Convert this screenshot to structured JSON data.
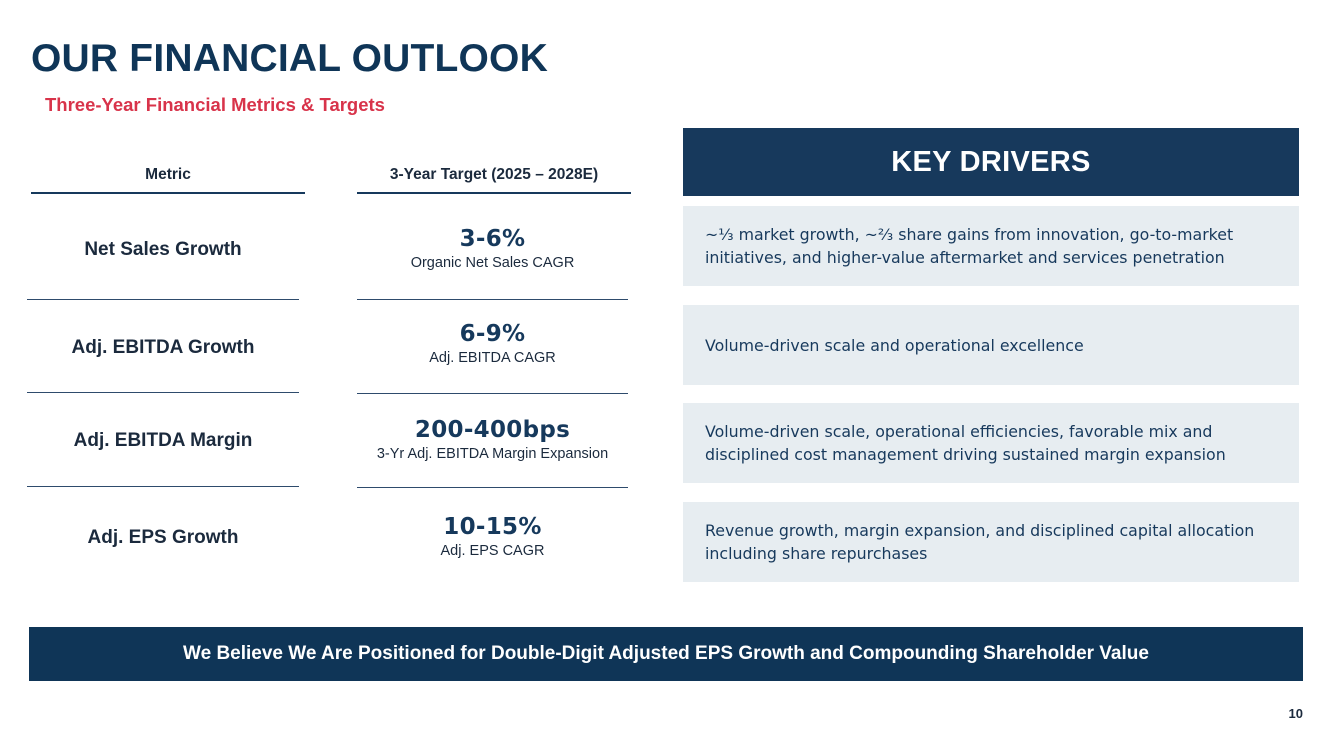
{
  "title": "OUR FINANCIAL OUTLOOK",
  "subtitle": "Three-Year Financial Metrics & Targets",
  "table": {
    "metric_header": "Metric",
    "target_header": "3-Year Target (2025 – 2028E)",
    "rows": [
      {
        "metric": "Net Sales Growth",
        "target": "3-6%",
        "target_desc": "Organic Net Sales CAGR"
      },
      {
        "metric": "Adj. EBITDA Growth",
        "target": "6-9%",
        "target_desc": "Adj. EBITDA CAGR"
      },
      {
        "metric": "Adj. EBITDA Margin",
        "target": "200-400bps",
        "target_desc": "3-Yr Adj. EBITDA Margin Expansion"
      },
      {
        "metric": "Adj. EPS Growth",
        "target": "10-15%",
        "target_desc": "Adj. EPS CAGR"
      }
    ]
  },
  "key_drivers": {
    "header": "KEY DRIVERS",
    "items": [
      "~⅓ market growth, ~⅔ share gains from innovation, go-to-market initiatives, and higher-value aftermarket and services penetration",
      "Volume-driven scale and operational excellence",
      "Volume-driven scale, operational efficiencies, favorable mix and disciplined cost management driving sustained margin expansion",
      "Revenue growth, margin expansion, and disciplined capital allocation including share repurchases"
    ]
  },
  "banner": "We Believe We Are Positioned for Double-Digit Adjusted EPS Growth and Compounding Shareholder Value",
  "page_number": "10"
}
